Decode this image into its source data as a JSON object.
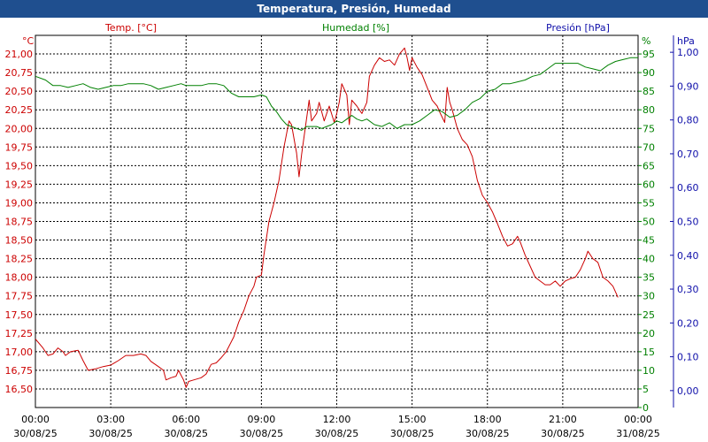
{
  "window": {
    "title": "Temperatura, Presión, Humedad"
  },
  "legend": {
    "temp": "Temp. [°C]",
    "hum": "Humedad [%]",
    "pres": "Presión [hPa]"
  },
  "units": {
    "temp": "°C",
    "hum": "%",
    "pres": "hPa"
  },
  "colors": {
    "temp": "#cc0000",
    "hum": "#008000",
    "pres": "#1010aa",
    "title_bg": "#1f4f8f",
    "grid": "#000000"
  },
  "chart_data": {
    "type": "line",
    "title": "Temperatura, Presión, Humedad",
    "x_axis": {
      "range_hours": [
        0,
        24
      ],
      "ticks": [
        {
          "h": 0,
          "time": "00:00",
          "date": "30/08/25"
        },
        {
          "h": 3,
          "time": "03:00",
          "date": "30/08/25"
        },
        {
          "h": 6,
          "time": "06:00",
          "date": "30/08/25"
        },
        {
          "h": 9,
          "time": "09:00",
          "date": "30/08/25"
        },
        {
          "h": 12,
          "time": "12:00",
          "date": "30/08/25"
        },
        {
          "h": 15,
          "time": "15:00",
          "date": "30/08/25"
        },
        {
          "h": 18,
          "time": "18:00",
          "date": "30/08/25"
        },
        {
          "h": 21,
          "time": "21:00",
          "date": "30/08/25"
        },
        {
          "h": 24,
          "time": "00:00",
          "date": "31/08/25"
        }
      ]
    },
    "y_axes": {
      "temp": {
        "ylim": [
          16.25,
          21.25
        ],
        "ticks": [
          "16,50",
          "16,75",
          "17,00",
          "17,25",
          "17,50",
          "17,75",
          "18,00",
          "18,25",
          "18,50",
          "18,75",
          "19,00",
          "19,25",
          "19,50",
          "19,75",
          "20,00",
          "20,25",
          "20,50",
          "20,75",
          "21,00"
        ]
      },
      "hum": {
        "ylim": [
          0,
          100
        ],
        "ticks": [
          "0",
          "5",
          "10",
          "15",
          "20",
          "25",
          "30",
          "35",
          "40",
          "45",
          "50",
          "55",
          "60",
          "65",
          "70",
          "75",
          "80",
          "85",
          "90",
          "95"
        ]
      },
      "pres": {
        "ylim": [
          -0.05,
          1.05
        ],
        "ticks": [
          "0,00",
          "0,10",
          "0,20",
          "0,30",
          "0,40",
          "0,50",
          "0,60",
          "0,70",
          "0,80",
          "0,90",
          "1,00"
        ]
      }
    },
    "grid": true,
    "series": [
      {
        "name": "Temp. [°C]",
        "axis": "temp",
        "color": "#cc0000",
        "points": [
          [
            0,
            17.17
          ],
          [
            0.3,
            17.05
          ],
          [
            0.5,
            16.95
          ],
          [
            0.7,
            16.97
          ],
          [
            0.9,
            17.05
          ],
          [
            1.1,
            17.0
          ],
          [
            1.2,
            16.95
          ],
          [
            1.4,
            17.0
          ],
          [
            1.7,
            17.02
          ],
          [
            1.9,
            16.88
          ],
          [
            2.1,
            16.75
          ],
          [
            2.4,
            16.77
          ],
          [
            2.7,
            16.8
          ],
          [
            3.0,
            16.82
          ],
          [
            3.3,
            16.88
          ],
          [
            3.6,
            16.95
          ],
          [
            3.9,
            16.95
          ],
          [
            4.2,
            16.97
          ],
          [
            4.4,
            16.95
          ],
          [
            4.6,
            16.87
          ],
          [
            4.9,
            16.8
          ],
          [
            5.1,
            16.75
          ],
          [
            5.2,
            16.62
          ],
          [
            5.4,
            16.65
          ],
          [
            5.6,
            16.67
          ],
          [
            5.7,
            16.75
          ],
          [
            5.9,
            16.62
          ],
          [
            6.0,
            16.52
          ],
          [
            6.1,
            16.6
          ],
          [
            6.3,
            16.62
          ],
          [
            6.6,
            16.65
          ],
          [
            6.8,
            16.7
          ],
          [
            7.0,
            16.83
          ],
          [
            7.2,
            16.85
          ],
          [
            7.4,
            16.92
          ],
          [
            7.6,
            17.0
          ],
          [
            7.9,
            17.2
          ],
          [
            8.1,
            17.4
          ],
          [
            8.3,
            17.55
          ],
          [
            8.5,
            17.75
          ],
          [
            8.7,
            17.88
          ],
          [
            8.8,
            18.0
          ],
          [
            9.0,
            18.03
          ],
          [
            9.1,
            18.3
          ],
          [
            9.3,
            18.75
          ],
          [
            9.5,
            19.0
          ],
          [
            9.7,
            19.3
          ],
          [
            9.9,
            19.75
          ],
          [
            10.1,
            20.1
          ],
          [
            10.2,
            20.05
          ],
          [
            10.4,
            19.67
          ],
          [
            10.5,
            19.35
          ],
          [
            10.6,
            19.65
          ],
          [
            10.9,
            20.38
          ],
          [
            11.0,
            20.1
          ],
          [
            11.2,
            20.2
          ],
          [
            11.3,
            20.35
          ],
          [
            11.5,
            20.1
          ],
          [
            11.7,
            20.3
          ],
          [
            11.9,
            20.08
          ],
          [
            12.0,
            20.2
          ],
          [
            12.1,
            20.35
          ],
          [
            12.2,
            20.6
          ],
          [
            12.4,
            20.45
          ],
          [
            12.5,
            20.05
          ],
          [
            12.6,
            20.38
          ],
          [
            12.8,
            20.3
          ],
          [
            13.0,
            20.2
          ],
          [
            13.2,
            20.35
          ],
          [
            13.3,
            20.7
          ],
          [
            13.5,
            20.85
          ],
          [
            13.7,
            20.95
          ],
          [
            13.9,
            20.9
          ],
          [
            14.1,
            20.92
          ],
          [
            14.3,
            20.85
          ],
          [
            14.5,
            21.0
          ],
          [
            14.7,
            21.08
          ],
          [
            14.8,
            20.95
          ],
          [
            14.9,
            20.78
          ],
          [
            15.0,
            20.95
          ],
          [
            15.2,
            20.82
          ],
          [
            15.4,
            20.72
          ],
          [
            15.6,
            20.55
          ],
          [
            15.8,
            20.38
          ],
          [
            16.0,
            20.3
          ],
          [
            16.1,
            20.22
          ],
          [
            16.3,
            20.08
          ],
          [
            16.4,
            20.55
          ],
          [
            16.5,
            20.35
          ],
          [
            16.6,
            20.25
          ],
          [
            16.8,
            20.0
          ],
          [
            17.0,
            19.85
          ],
          [
            17.2,
            19.78
          ],
          [
            17.4,
            19.62
          ],
          [
            17.6,
            19.3
          ],
          [
            17.8,
            19.1
          ],
          [
            18.0,
            19.0
          ],
          [
            18.2,
            18.88
          ],
          [
            18.4,
            18.72
          ],
          [
            18.6,
            18.55
          ],
          [
            18.8,
            18.42
          ],
          [
            19.0,
            18.45
          ],
          [
            19.2,
            18.55
          ],
          [
            19.3,
            18.48
          ],
          [
            19.5,
            18.3
          ],
          [
            19.7,
            18.15
          ],
          [
            19.9,
            18.0
          ],
          [
            20.1,
            17.95
          ],
          [
            20.3,
            17.9
          ],
          [
            20.5,
            17.9
          ],
          [
            20.7,
            17.95
          ],
          [
            20.9,
            17.88
          ],
          [
            21.1,
            17.95
          ],
          [
            21.3,
            17.98
          ],
          [
            21.5,
            18.0
          ],
          [
            21.7,
            18.1
          ],
          [
            21.9,
            18.25
          ],
          [
            22.0,
            18.35
          ],
          [
            22.2,
            18.25
          ],
          [
            22.4,
            18.2
          ],
          [
            22.6,
            18.0
          ],
          [
            22.8,
            17.95
          ],
          [
            23.0,
            17.88
          ],
          [
            23.2,
            17.73
          ]
        ]
      },
      {
        "name": "Humedad [%]",
        "axis": "hum",
        "color": "#008000",
        "points": [
          [
            0,
            89
          ],
          [
            0.4,
            88
          ],
          [
            0.7,
            86.5
          ],
          [
            1.0,
            86.5
          ],
          [
            1.3,
            86
          ],
          [
            1.6,
            86.5
          ],
          [
            1.9,
            87
          ],
          [
            2.2,
            86
          ],
          [
            2.5,
            85.5
          ],
          [
            2.8,
            86
          ],
          [
            3.1,
            86.5
          ],
          [
            3.4,
            86.5
          ],
          [
            3.7,
            87
          ],
          [
            4.0,
            87
          ],
          [
            4.3,
            87
          ],
          [
            4.6,
            86.5
          ],
          [
            4.9,
            85.5
          ],
          [
            5.2,
            86
          ],
          [
            5.5,
            86.5
          ],
          [
            5.8,
            87
          ],
          [
            6.0,
            86.5
          ],
          [
            6.3,
            86.5
          ],
          [
            6.6,
            86.5
          ],
          [
            6.9,
            87
          ],
          [
            7.2,
            87
          ],
          [
            7.5,
            86.5
          ],
          [
            7.8,
            84.5
          ],
          [
            8.1,
            83.5
          ],
          [
            8.4,
            83.5
          ],
          [
            8.7,
            83.5
          ],
          [
            9.0,
            84
          ],
          [
            9.2,
            83.5
          ],
          [
            9.4,
            81
          ],
          [
            9.6,
            79.5
          ],
          [
            9.8,
            77.5
          ],
          [
            10.0,
            76
          ],
          [
            10.2,
            75.5
          ],
          [
            10.4,
            75
          ],
          [
            10.6,
            74.5
          ],
          [
            10.8,
            75.5
          ],
          [
            11.0,
            75.5
          ],
          [
            11.2,
            75.5
          ],
          [
            11.4,
            75
          ],
          [
            11.6,
            75.5
          ],
          [
            11.8,
            76
          ],
          [
            12.0,
            77
          ],
          [
            12.2,
            76.5
          ],
          [
            12.4,
            77.5
          ],
          [
            12.6,
            78.5
          ],
          [
            12.8,
            77.5
          ],
          [
            13.0,
            77
          ],
          [
            13.2,
            77.5
          ],
          [
            13.5,
            76
          ],
          [
            13.8,
            75.5
          ],
          [
            14.1,
            76.5
          ],
          [
            14.4,
            75
          ],
          [
            14.7,
            76
          ],
          [
            15.0,
            76
          ],
          [
            15.3,
            77
          ],
          [
            15.6,
            78.5
          ],
          [
            15.9,
            80
          ],
          [
            16.2,
            79.5
          ],
          [
            16.5,
            78
          ],
          [
            16.8,
            78.5
          ],
          [
            17.1,
            80
          ],
          [
            17.4,
            82
          ],
          [
            17.7,
            83
          ],
          [
            18.0,
            85
          ],
          [
            18.3,
            85.5
          ],
          [
            18.6,
            87
          ],
          [
            18.9,
            87
          ],
          [
            19.2,
            87.5
          ],
          [
            19.5,
            88
          ],
          [
            19.8,
            89
          ],
          [
            20.1,
            89.5
          ],
          [
            20.4,
            91
          ],
          [
            20.7,
            92.5
          ],
          [
            21.0,
            92.5
          ],
          [
            21.3,
            92.5
          ],
          [
            21.6,
            92.5
          ],
          [
            21.9,
            91.5
          ],
          [
            22.2,
            91
          ],
          [
            22.5,
            90.5
          ],
          [
            22.8,
            92
          ],
          [
            23.1,
            93
          ],
          [
            23.4,
            93.5
          ],
          [
            23.7,
            94
          ],
          [
            24.0,
            94
          ]
        ]
      }
    ]
  }
}
